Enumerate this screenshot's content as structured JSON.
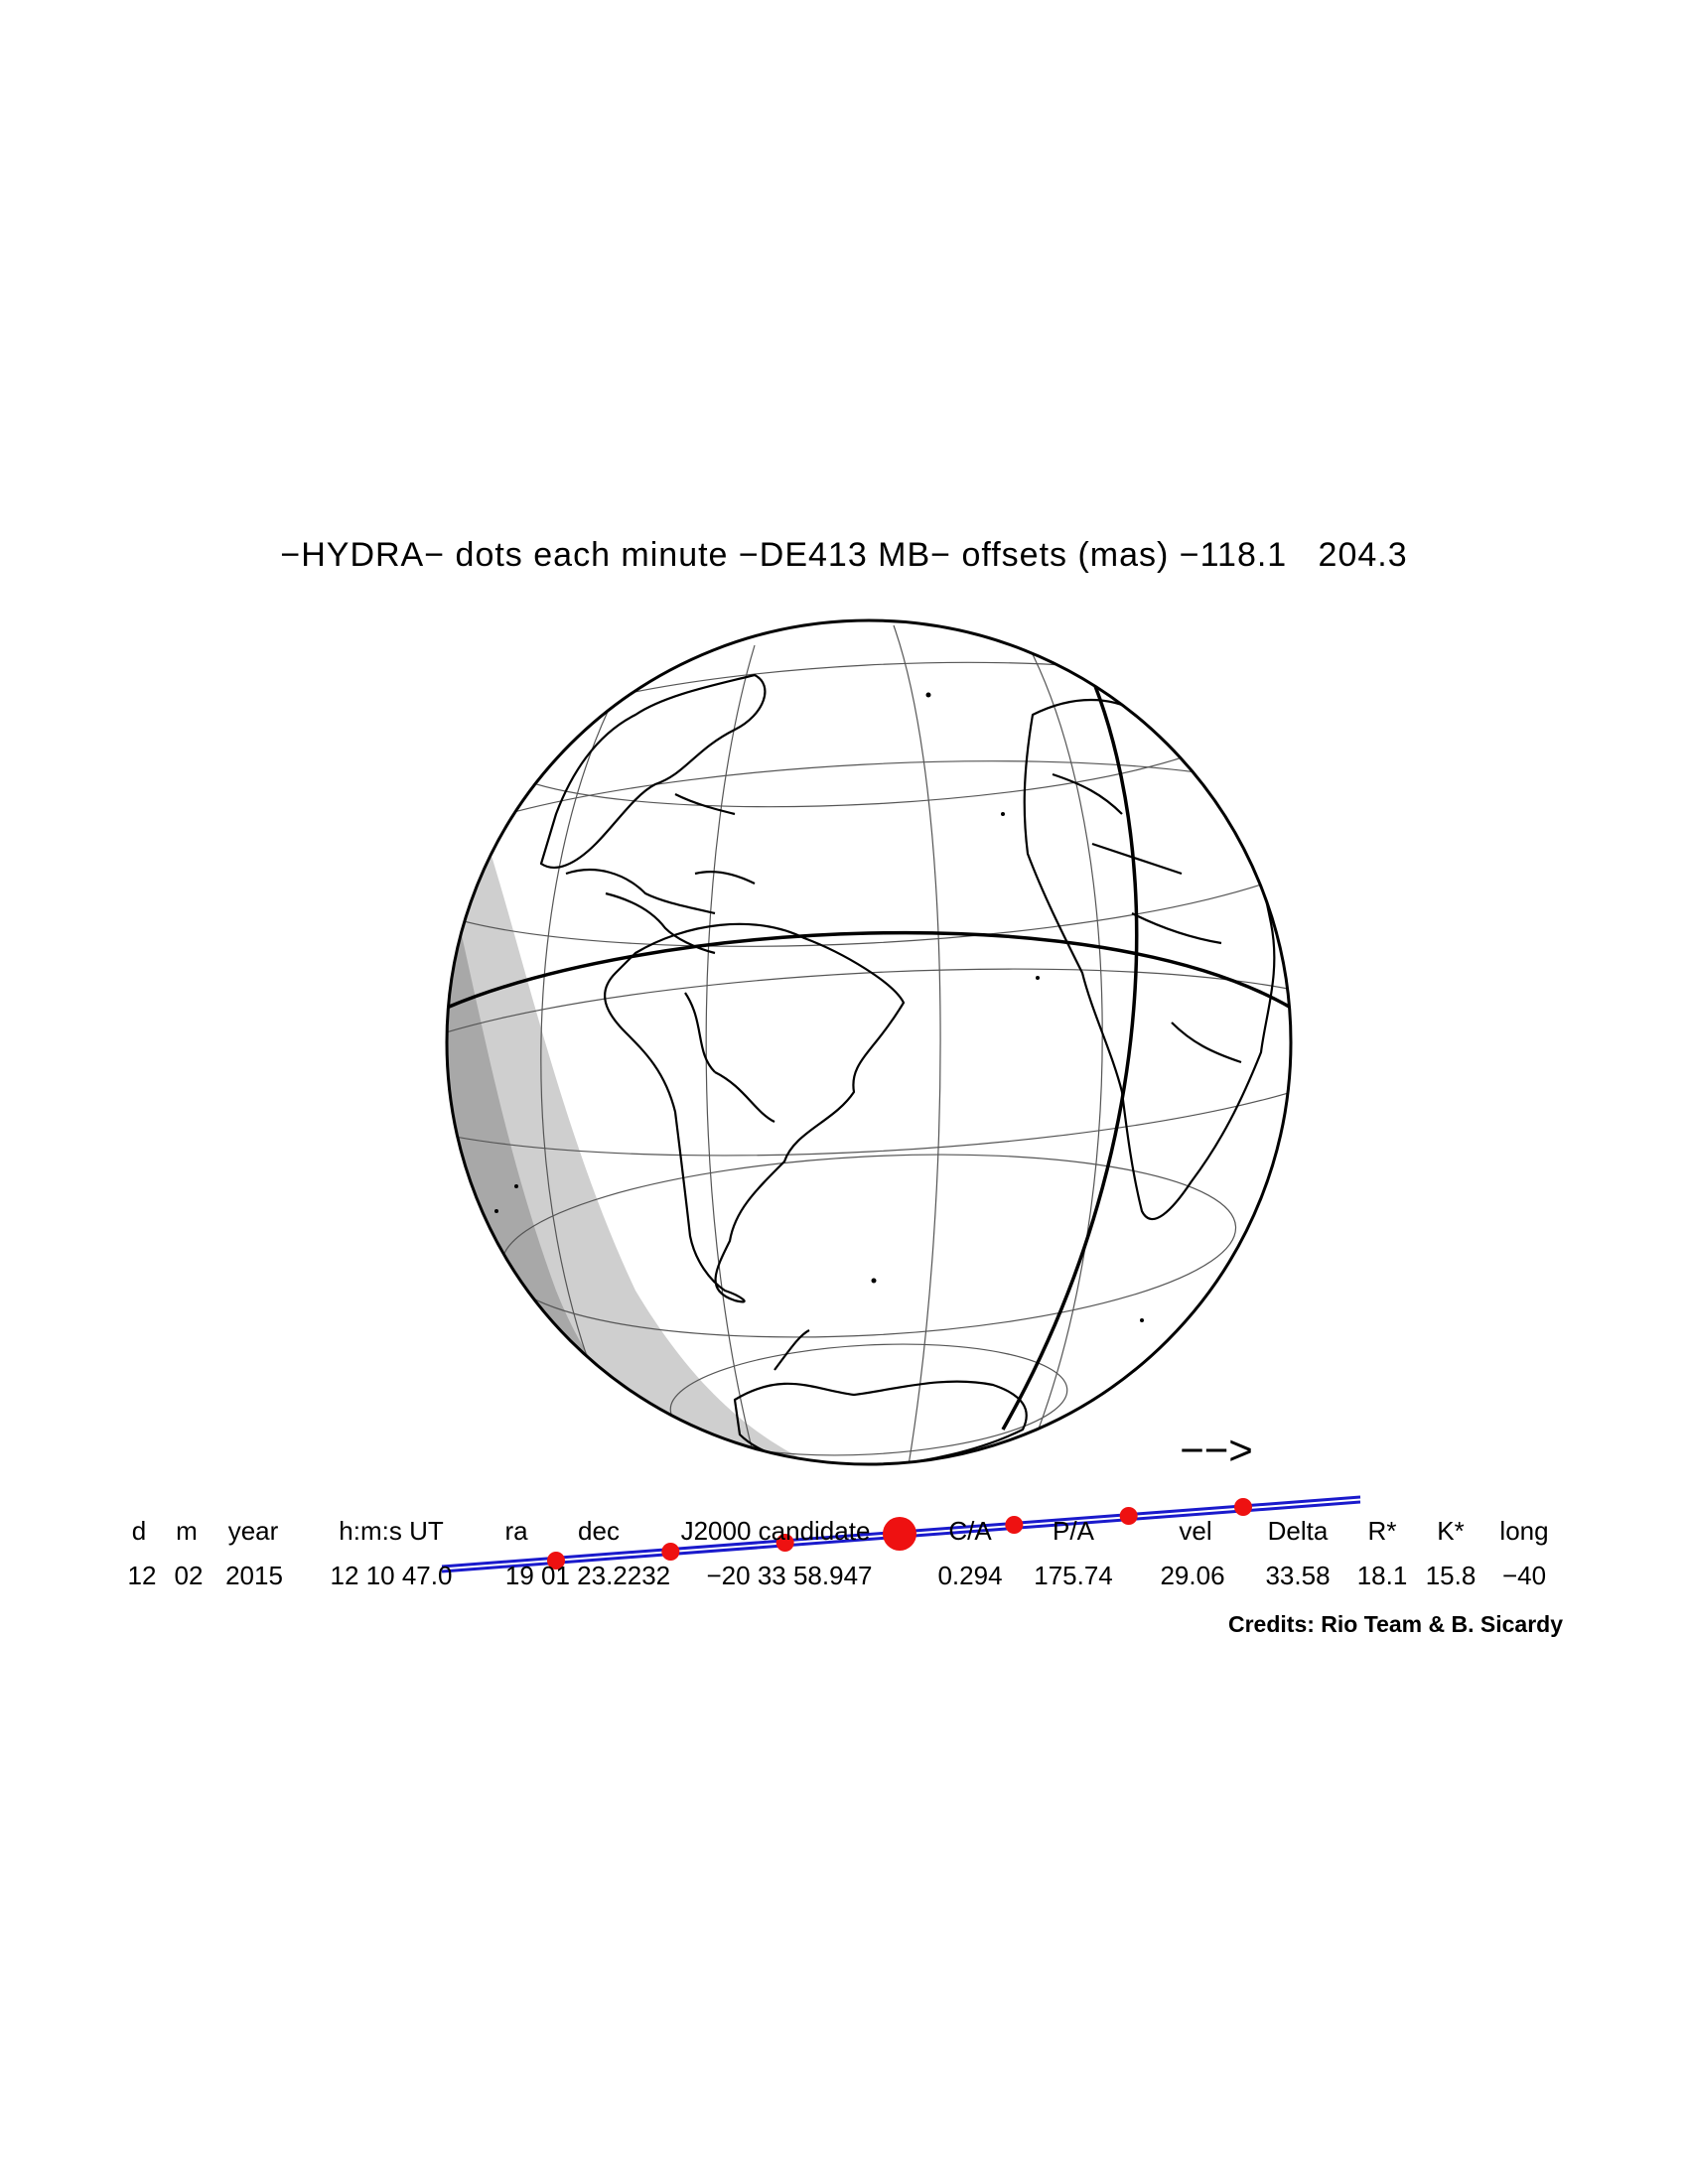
{
  "title": "−HYDRA− dots each minute −DE413 MB− offsets (mas) −118.1   204.3",
  "direction_arrow": "−−>",
  "table": {
    "headers": [
      "d",
      "m",
      "year",
      "h:m:s UT",
      "ra",
      "dec",
      "J2000 candidate",
      "C/A",
      "P/A",
      "vel",
      "Delta",
      "R*",
      "K*",
      "long"
    ],
    "values": [
      "12",
      "02",
      "2015",
      "12 10 47.0",
      "19 01 23.2232",
      "−20 33 58.947",
      "0.294",
      "175.74",
      "29.06",
      "33.58",
      "18.1",
      "15.8",
      "−40"
    ]
  },
  "credits": "Credits: Rio Team & B. Sicardy",
  "colors": {
    "path": "#1a1acc",
    "dots": "#ee1111",
    "night": "#cfcfcf",
    "twilight": "#a8a8a8"
  },
  "track": {
    "dots_count": 7,
    "closest_approach_index": 3
  }
}
